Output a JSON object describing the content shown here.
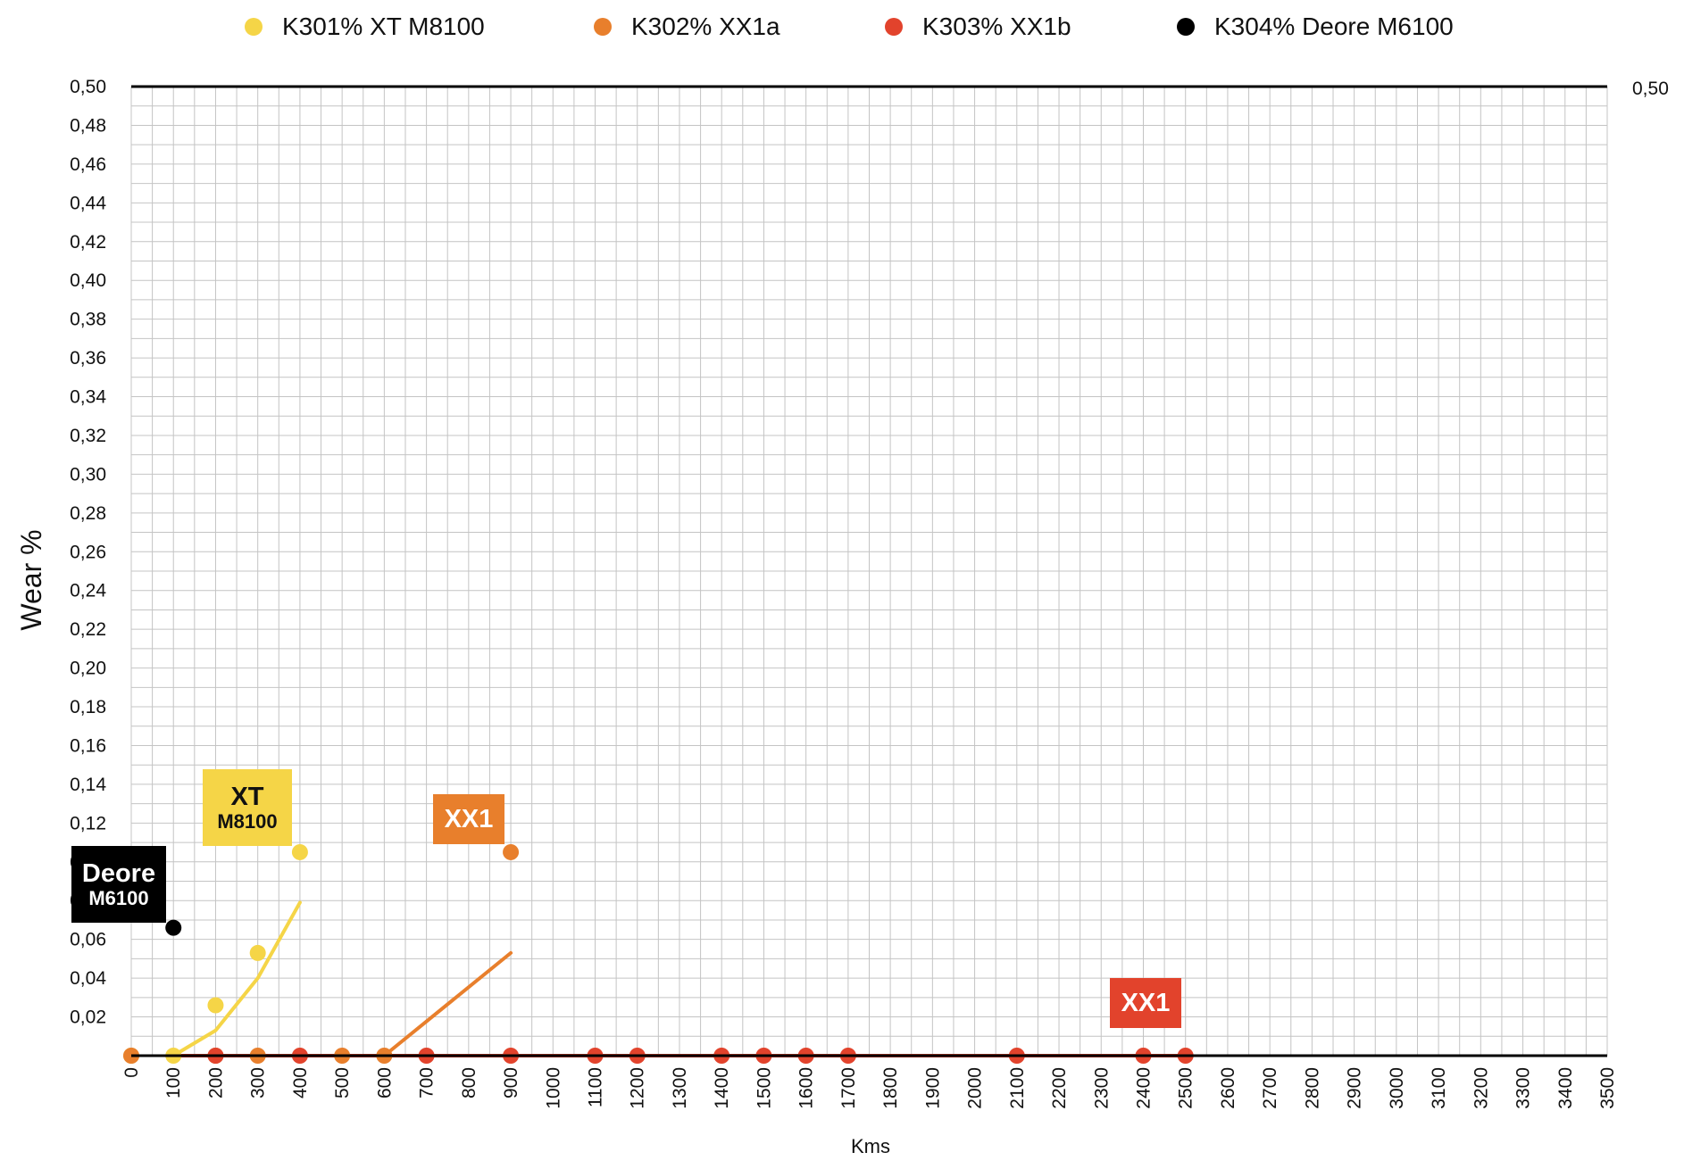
{
  "chart_data": {
    "type": "line",
    "xlabel": "Kms",
    "ylabel": "Wear %",
    "xlim": [
      0,
      3500
    ],
    "ylim": [
      0,
      0.5
    ],
    "x_ticks": [
      "0",
      "100",
      "200",
      "300",
      "400",
      "500",
      "600",
      "700",
      "800",
      "900",
      "1000",
      "1100",
      "1200",
      "1300",
      "1400",
      "1500",
      "1600",
      "1700",
      "1800",
      "1900",
      "2000",
      "2100",
      "2200",
      "2300",
      "2400",
      "2500",
      "2600",
      "2700",
      "2800",
      "2900",
      "3000",
      "3100",
      "3200",
      "3300",
      "3400",
      "3500"
    ],
    "y_ticks": [
      "0,50",
      "0,48",
      "0,46",
      "0,44",
      "0,42",
      "0,40",
      "0,38",
      "0,36",
      "0,34",
      "0,32",
      "0,30",
      "0,28",
      "0,26",
      "0,24",
      "0,22",
      "0,20",
      "0,18",
      "0,16",
      "0,14",
      "0,12",
      "0,10",
      "0,08",
      "0,06",
      "0,04",
      "0,02"
    ],
    "right_axis_label": "0,50",
    "grid": true,
    "legend_position": "top",
    "series": [
      {
        "name": "K301% XT M8100",
        "color": "#f5d547",
        "points": [
          [
            0,
            0
          ],
          [
            100,
            0
          ],
          [
            200,
            0.026
          ],
          [
            300,
            0.053
          ],
          [
            400,
            0.105
          ]
        ],
        "trend": [
          [
            100,
            0
          ],
          [
            200,
            0.013
          ],
          [
            300,
            0.04
          ],
          [
            400,
            0.079
          ]
        ]
      },
      {
        "name": "K302% XX1a",
        "color": "#e87f2c",
        "points": [
          [
            0,
            0
          ],
          [
            200,
            0
          ],
          [
            300,
            0
          ],
          [
            500,
            0
          ],
          [
            600,
            0
          ],
          [
            900,
            0.105
          ]
        ],
        "trend": [
          [
            100,
            0
          ],
          [
            600,
            0
          ],
          [
            900,
            0.053
          ]
        ]
      },
      {
        "name": "K303% XX1b",
        "color": "#e2432c",
        "points": [
          [
            200,
            0
          ],
          [
            400,
            0
          ],
          [
            700,
            0
          ],
          [
            900,
            0
          ],
          [
            1100,
            0
          ],
          [
            1200,
            0
          ],
          [
            1400,
            0
          ],
          [
            1500,
            0
          ],
          [
            1600,
            0
          ],
          [
            1700,
            0
          ],
          [
            2100,
            0
          ],
          [
            2400,
            0
          ],
          [
            2500,
            0
          ]
        ],
        "trend": [
          [
            100,
            0
          ],
          [
            2500,
            0
          ]
        ]
      },
      {
        "name": "K304% Deore M6100",
        "color": "#000000",
        "points": [
          [
            100,
            0.066
          ]
        ],
        "trend": []
      }
    ],
    "annotations": [
      {
        "main": "Deore",
        "sub": "M6100",
        "bg": "#000000",
        "fg": "#ffffff"
      },
      {
        "main": "XT",
        "sub": "M8100",
        "bg": "#f5d547",
        "fg": "#111111"
      },
      {
        "main": "XX1",
        "sub": "",
        "bg": "#e87f2c",
        "fg": "#ffffff"
      },
      {
        "main": "XX1",
        "sub": "",
        "bg": "#e2432c",
        "fg": "#ffffff"
      }
    ]
  }
}
